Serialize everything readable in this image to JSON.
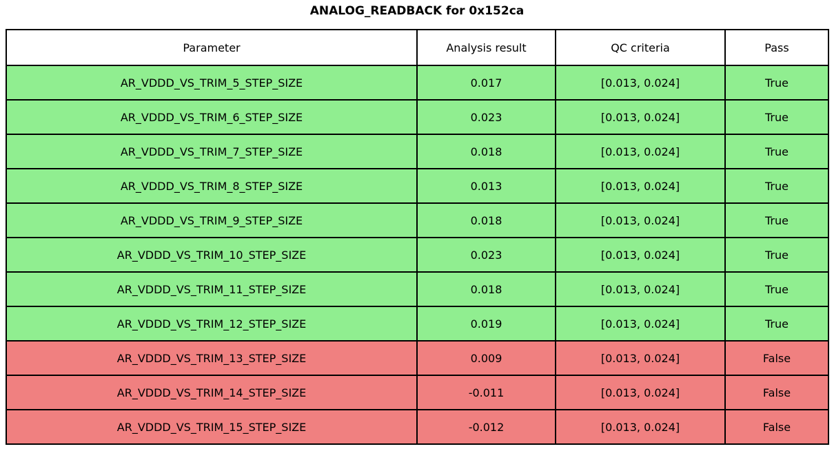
{
  "title": "ANALOG_READBACK for 0x152ca",
  "colors": {
    "pass_row": "#90EE90",
    "fail_row": "#F08080",
    "border": "#000000",
    "header_bg": "#FFFFFF",
    "text": "#000000"
  },
  "chart_data": {
    "type": "table",
    "title": "ANALOG_READBACK for 0x152ca",
    "columns": [
      "Parameter",
      "Analysis result",
      "QC criteria",
      "Pass"
    ],
    "rows": [
      {
        "parameter": "AR_VDDD_VS_TRIM_5_STEP_SIZE",
        "result": "0.017",
        "criteria": "[0.013, 0.024]",
        "pass": "True"
      },
      {
        "parameter": "AR_VDDD_VS_TRIM_6_STEP_SIZE",
        "result": "0.023",
        "criteria": "[0.013, 0.024]",
        "pass": "True"
      },
      {
        "parameter": "AR_VDDD_VS_TRIM_7_STEP_SIZE",
        "result": "0.018",
        "criteria": "[0.013, 0.024]",
        "pass": "True"
      },
      {
        "parameter": "AR_VDDD_VS_TRIM_8_STEP_SIZE",
        "result": "0.013",
        "criteria": "[0.013, 0.024]",
        "pass": "True"
      },
      {
        "parameter": "AR_VDDD_VS_TRIM_9_STEP_SIZE",
        "result": "0.018",
        "criteria": "[0.013, 0.024]",
        "pass": "True"
      },
      {
        "parameter": "AR_VDDD_VS_TRIM_10_STEP_SIZE",
        "result": "0.023",
        "criteria": "[0.013, 0.024]",
        "pass": "True"
      },
      {
        "parameter": "AR_VDDD_VS_TRIM_11_STEP_SIZE",
        "result": "0.018",
        "criteria": "[0.013, 0.024]",
        "pass": "True"
      },
      {
        "parameter": "AR_VDDD_VS_TRIM_12_STEP_SIZE",
        "result": "0.019",
        "criteria": "[0.013, 0.024]",
        "pass": "True"
      },
      {
        "parameter": "AR_VDDD_VS_TRIM_13_STEP_SIZE",
        "result": "0.009",
        "criteria": "[0.013, 0.024]",
        "pass": "False"
      },
      {
        "parameter": "AR_VDDD_VS_TRIM_14_STEP_SIZE",
        "result": "-0.011",
        "criteria": "[0.013, 0.024]",
        "pass": "False"
      },
      {
        "parameter": "AR_VDDD_VS_TRIM_15_STEP_SIZE",
        "result": "-0.012",
        "criteria": "[0.013, 0.024]",
        "pass": "False"
      }
    ]
  }
}
